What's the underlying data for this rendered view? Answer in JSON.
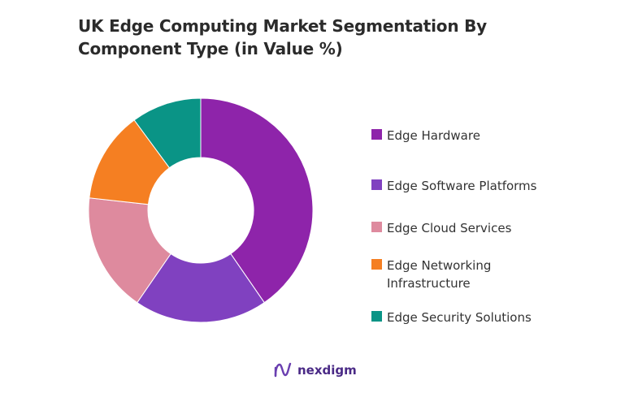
{
  "title": {
    "line1": "UK Edge Computing Market Segmentation By",
    "line2": "Component Type (in Value %)"
  },
  "chart_data": {
    "type": "pie",
    "donut": true,
    "legend_position": "right",
    "categories": [
      "Edge Hardware",
      "Edge Software Platforms",
      "Edge Cloud Services",
      "Edge Networking Infrastructure",
      "Edge Security Solutions"
    ],
    "legend_lines": [
      [
        "Edge Hardware"
      ],
      [
        "Edge Software Platforms"
      ],
      [
        "Edge Cloud Services"
      ],
      [
        "Edge Networking",
        "Infrastructure"
      ],
      [
        "Edge Security Solutions"
      ]
    ],
    "values": [
      40,
      19,
      17,
      13,
      10
    ],
    "colors": [
      "#8E24AA",
      "#8041C0",
      "#DE8A9E",
      "#F57F22",
      "#0A9486"
    ]
  },
  "brand": {
    "name": "nexdigm",
    "logo_icon": "nexdigm-logo-icon"
  }
}
